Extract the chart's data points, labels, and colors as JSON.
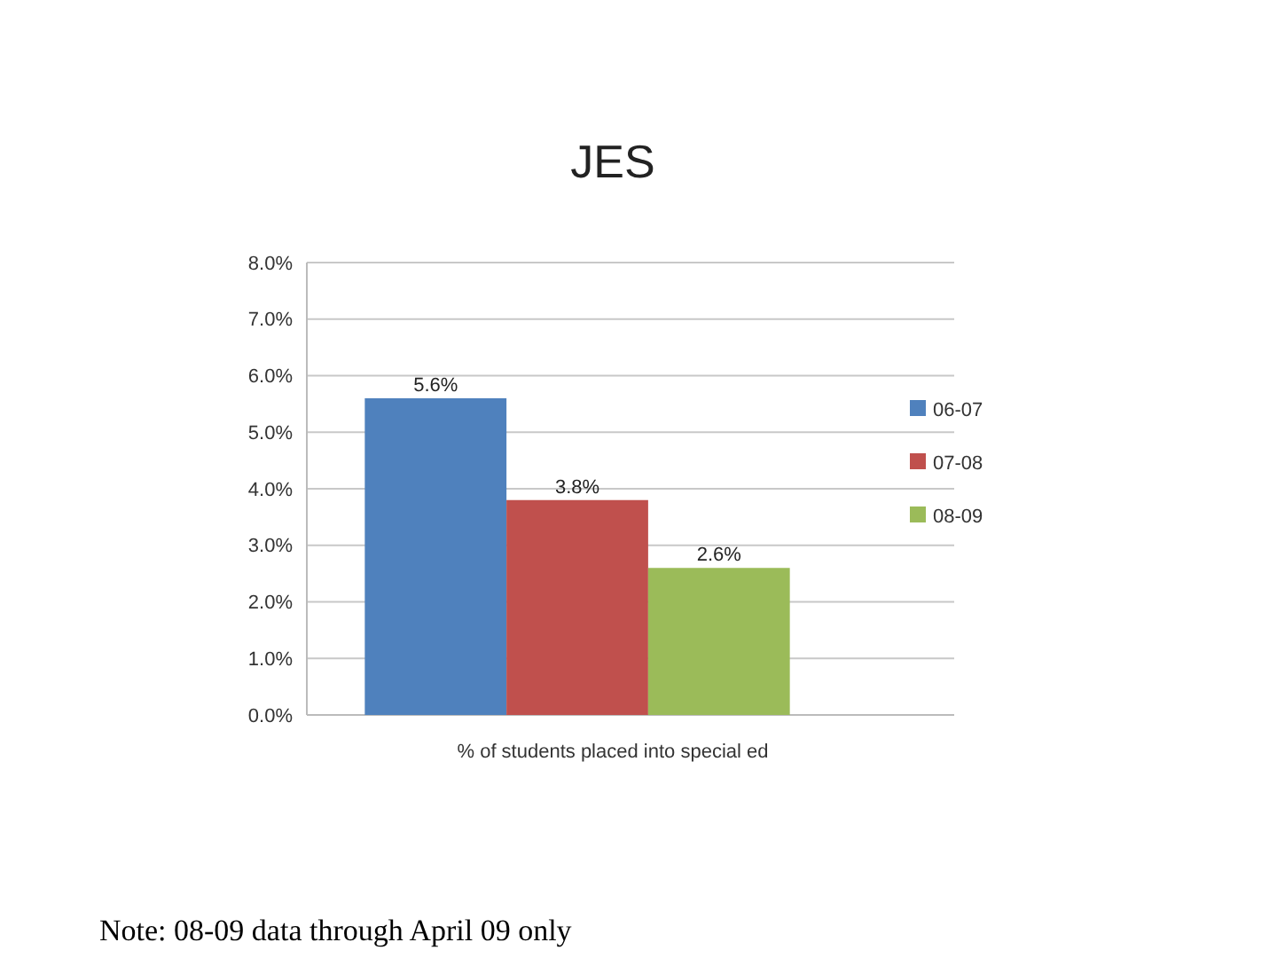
{
  "chart_data": {
    "type": "bar",
    "title": "JES",
    "categories": [
      "% of students placed into special ed"
    ],
    "series": [
      {
        "name": "06-07",
        "color": "#4f81bd",
        "values": [
          5.6
        ],
        "value_labels": [
          "5.6%"
        ]
      },
      {
        "name": "07-08",
        "color": "#c0504d",
        "values": [
          3.8
        ],
        "value_labels": [
          "3.8%"
        ]
      },
      {
        "name": "08-09",
        "color": "#9bbb59",
        "values": [
          2.6
        ],
        "value_labels": [
          "2.6%"
        ]
      }
    ],
    "ylim": [
      0,
      8
    ],
    "yticks": [
      {
        "value": 0,
        "label": "0.0%"
      },
      {
        "value": 1,
        "label": "1.0%"
      },
      {
        "value": 2,
        "label": "2.0%"
      },
      {
        "value": 3,
        "label": "3.0%"
      },
      {
        "value": 4,
        "label": "4.0%"
      },
      {
        "value": 5,
        "label": "5.0%"
      },
      {
        "value": 6,
        "label": "6.0%"
      },
      {
        "value": 7,
        "label": "7.0%"
      },
      {
        "value": 8,
        "label": "8.0%"
      }
    ],
    "grid": "y",
    "legend": "right",
    "annotations": [
      "Note: 08-09 data through April 09 only"
    ]
  }
}
